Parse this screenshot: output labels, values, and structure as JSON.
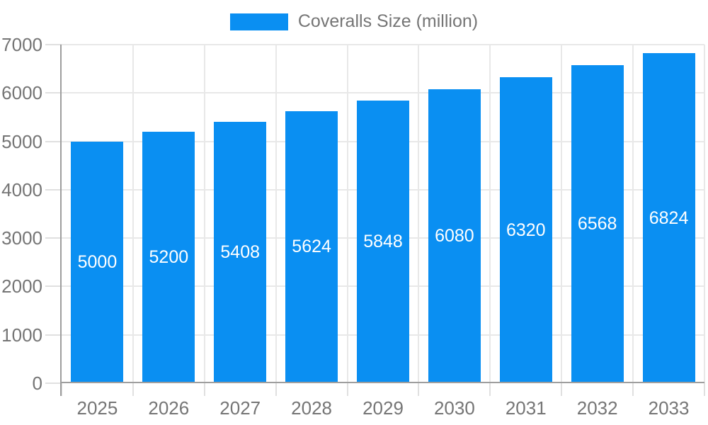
{
  "legend": {
    "position": "top",
    "label": "Coveralls Size (million)"
  },
  "colors": {
    "bar": "#0a8ff2",
    "axis_line": "#9e9e9e",
    "gridline": "#e8e8e8",
    "tick": "#e0e0e0",
    "axis_text": "#757575",
    "value_label_text": "#ffffff",
    "background": "#ffffff"
  },
  "chart_data": {
    "type": "bar",
    "title": "",
    "xlabel": "",
    "ylabel": "",
    "categories": [
      "2025",
      "2026",
      "2027",
      "2028",
      "2029",
      "2030",
      "2031",
      "2032",
      "2033"
    ],
    "series": [
      {
        "name": "Coveralls Size (million)",
        "values": [
          5000,
          5200,
          5408,
          5624,
          5848,
          6080,
          6320,
          6568,
          6824
        ]
      }
    ],
    "value_labels_position": "inside-center",
    "ylim": [
      0,
      7000
    ],
    "yticks": [
      0,
      1000,
      2000,
      3000,
      4000,
      5000,
      6000,
      7000
    ],
    "grid": "both",
    "legend_position": "top-center"
  }
}
